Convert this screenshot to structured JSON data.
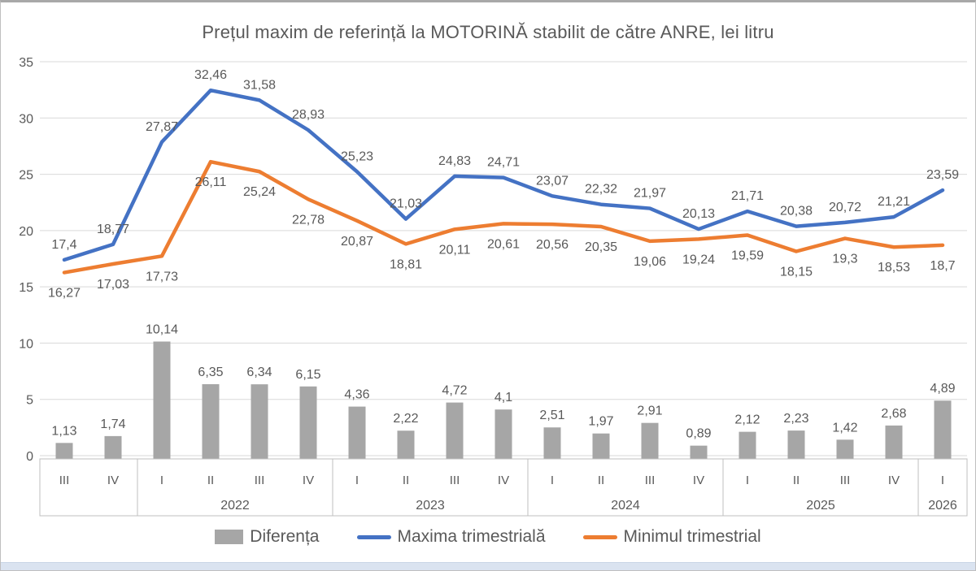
{
  "title": "Prețul maxim de referință la MOTORINĂ stabilit de către ANRE, lei litru",
  "colors": {
    "maxima": "#4472C4",
    "minimul": "#ED7D31",
    "diferenta": "#A6A6A6",
    "grid": "#D9D9D9",
    "text": "#595959",
    "axis_border": "#BFBFBF",
    "bottom_strip": "#DAE3F0",
    "background": "#FFFFFF"
  },
  "legend": [
    {
      "label": "Diferența",
      "type": "bar",
      "color": "#A6A6A6"
    },
    {
      "label": "Maxima trimestrială",
      "type": "line",
      "color": "#4472C4"
    },
    {
      "label": "Minimul trimestrial",
      "type": "line",
      "color": "#ED7D31"
    }
  ],
  "chart_data": {
    "type": "combo bar+line",
    "title": "Prețul maxim de referință la MOTORINĂ stabilit de către ANRE, lei litru",
    "xlabel": "",
    "ylabel": "",
    "ylim": [
      0,
      35
    ],
    "yticks": [
      0,
      5,
      10,
      15,
      20,
      25,
      30,
      35
    ],
    "grid": true,
    "legend_position": "bottom",
    "categories": [
      "III",
      "IV",
      "I",
      "II",
      "III",
      "IV",
      "I",
      "II",
      "III",
      "IV",
      "I",
      "II",
      "III",
      "IV",
      "I",
      "II",
      "III",
      "IV",
      "I"
    ],
    "year_groups": [
      {
        "label": "",
        "span": 2
      },
      {
        "label": "2022",
        "span": 4
      },
      {
        "label": "2023",
        "span": 4
      },
      {
        "label": "2024",
        "span": 4
      },
      {
        "label": "2025",
        "span": 4
      },
      {
        "label": "2026",
        "span": 1
      }
    ],
    "series": [
      {
        "name": "Diferența",
        "type": "bar",
        "color": "#A6A6A6",
        "values": [
          1.13,
          1.74,
          10.14,
          6.35,
          6.34,
          6.15,
          4.36,
          2.22,
          4.72,
          4.1,
          2.51,
          1.97,
          2.91,
          0.89,
          2.12,
          2.23,
          1.42,
          2.68,
          4.89
        ],
        "labels": [
          "1,13",
          "1,74",
          "10,14",
          "6,35",
          "6,34",
          "6,15",
          "4,36",
          "2,22",
          "4,72",
          "4,1",
          "2,51",
          "1,97",
          "2,91",
          "0,89",
          "2,12",
          "2,23",
          "1,42",
          "2,68",
          "4,89"
        ]
      },
      {
        "name": "Maxima trimestrială",
        "type": "line",
        "color": "#4472C4",
        "values": [
          17.4,
          18.77,
          27.87,
          32.46,
          31.58,
          28.93,
          25.23,
          21.03,
          24.83,
          24.71,
          23.07,
          22.32,
          21.97,
          20.13,
          21.71,
          20.38,
          20.72,
          21.21,
          23.59
        ],
        "labels": [
          "17,4",
          "18,77",
          "27,87",
          "32,46",
          "31,58",
          "28,93",
          "25,23",
          "21,03",
          "24,83",
          "24,71",
          "23,07",
          "22,32",
          "21,97",
          "20,13",
          "21,71",
          "20,38",
          "20,72",
          "21,21",
          "23,59"
        ]
      },
      {
        "name": "Minimul trimestrial",
        "type": "line",
        "color": "#ED7D31",
        "values": [
          16.27,
          17.03,
          17.73,
          26.11,
          25.24,
          22.78,
          20.87,
          18.81,
          20.11,
          20.61,
          20.56,
          20.35,
          19.06,
          19.24,
          19.59,
          18.15,
          19.3,
          18.53,
          18.7
        ],
        "labels": [
          "16,27",
          "17,03",
          "17,73",
          "26,11",
          "25,24",
          "22,78",
          "20,87",
          "18,81",
          "20,11",
          "20,61",
          "20,56",
          "20,35",
          "19,06",
          "19,24",
          "19,59",
          "18,15",
          "19,3",
          "18,53",
          "18,7"
        ]
      }
    ]
  }
}
